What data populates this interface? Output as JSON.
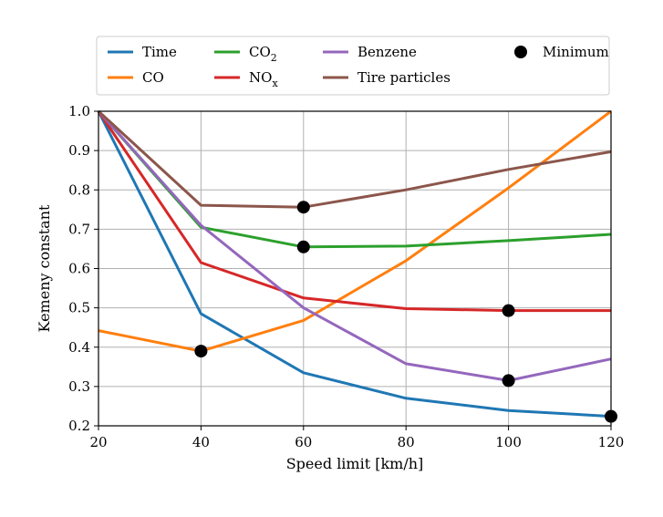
{
  "chart_data": {
    "type": "line",
    "title": "",
    "xlabel": "Speed limit [km/h]",
    "ylabel": "Kemeny constant",
    "xlim": [
      20,
      120
    ],
    "ylim": [
      0.2,
      1.0
    ],
    "xticks": [
      20,
      40,
      60,
      80,
      100,
      120
    ],
    "yticks": [
      0.2,
      0.3,
      0.4,
      0.5,
      0.6,
      0.7,
      0.8,
      0.9,
      1.0
    ],
    "grid": true,
    "legend_position": "top",
    "series": [
      {
        "name": "Time",
        "color": "#1f77b4",
        "x": [
          20,
          40,
          60,
          80,
          100,
          120
        ],
        "values": [
          1.0,
          0.485,
          0.335,
          0.27,
          0.239,
          0.224
        ]
      },
      {
        "name": "CO",
        "color": "#ff7f0e",
        "x": [
          20,
          40,
          60,
          80,
          100,
          120
        ],
        "values": [
          0.442,
          0.39,
          0.468,
          0.62,
          0.805,
          1.0
        ]
      },
      {
        "name": "CO",
        "name_subscript": "2",
        "color": "#2ca02c",
        "x": [
          20,
          40,
          60,
          80,
          100,
          120
        ],
        "values": [
          1.0,
          0.705,
          0.655,
          0.657,
          0.671,
          0.687
        ]
      },
      {
        "name": "NO",
        "name_subscript": "x",
        "color": "#d62728",
        "x": [
          20,
          40,
          60,
          80,
          100,
          120
        ],
        "values": [
          1.0,
          0.615,
          0.525,
          0.498,
          0.493,
          0.493
        ]
      },
      {
        "name": "Benzene",
        "color": "#9467bd",
        "x": [
          20,
          40,
          60,
          80,
          100,
          120
        ],
        "values": [
          1.0,
          0.71,
          0.5,
          0.358,
          0.315,
          0.37
        ]
      },
      {
        "name": "Tire particles",
        "color": "#8c564b",
        "x": [
          20,
          40,
          60,
          80,
          100,
          120
        ],
        "values": [
          1.0,
          0.761,
          0.756,
          0.8,
          0.852,
          0.897
        ]
      }
    ],
    "minimum": {
      "name": "Minimum",
      "color": "#000000",
      "points": [
        {
          "x": 120,
          "y": 0.224
        },
        {
          "x": 40,
          "y": 0.39
        },
        {
          "x": 60,
          "y": 0.655
        },
        {
          "x": 100,
          "y": 0.493
        },
        {
          "x": 100,
          "y": 0.315
        },
        {
          "x": 60,
          "y": 0.756
        }
      ]
    }
  }
}
